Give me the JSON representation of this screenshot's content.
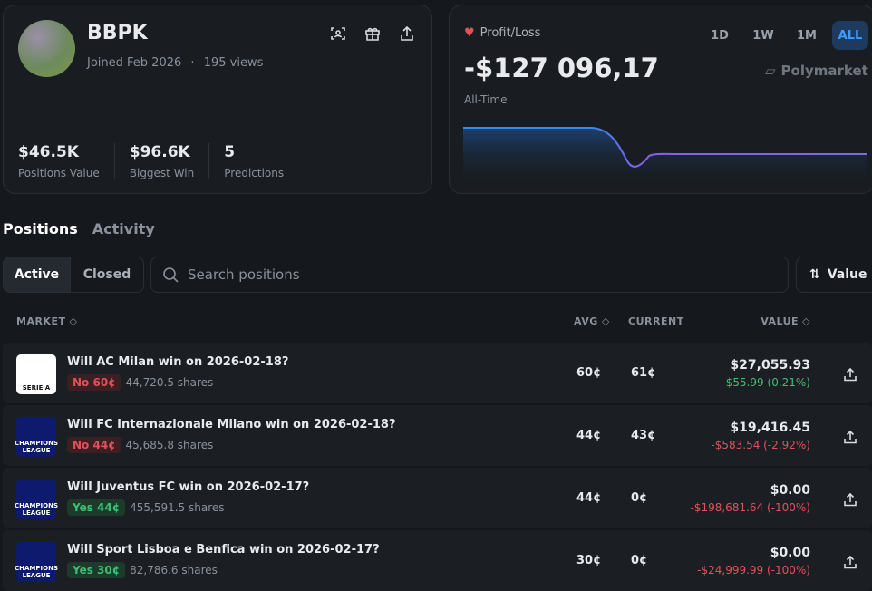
{
  "profile": {
    "name": "BBPK",
    "joined": "Joined Feb 2026",
    "separator": "·",
    "views": "195 views",
    "stats": [
      {
        "value": "$46.5K",
        "label": "Positions Value"
      },
      {
        "value": "$96.6K",
        "label": "Biggest Win"
      },
      {
        "value": "5",
        "label": "Predictions"
      }
    ]
  },
  "pnl": {
    "label": "Profit/Loss",
    "ranges": [
      "1D",
      "1W",
      "1M",
      "ALL"
    ],
    "active_range": 3,
    "amount": "-$127 096,17",
    "period": "All-Time",
    "brand": "Polymarket"
  },
  "tabs": [
    "Positions",
    "Activity"
  ],
  "filters": [
    "Active",
    "Closed"
  ],
  "search_placeholder": "Search positions",
  "sort": "Value",
  "table": {
    "headers": [
      "MARKET",
      "AVG",
      "CURRENT",
      "VALUE"
    ],
    "rows": [
      {
        "logo": "SERIE A",
        "title": "Will AC Milan win on 2026-02-18?",
        "outcome": "No 60¢",
        "shares": "44,720.5 shares",
        "avg": "60¢",
        "current": "61¢",
        "value": "$27,055.93",
        "change": "$55.99 (0.21%)"
      },
      {
        "logo": "CHAMPIONS LEAGUE",
        "title": "Will FC Internazionale Milano win on 2026-02-18?",
        "outcome": "No 44¢",
        "shares": "45,685.8 shares",
        "avg": "44¢",
        "current": "43¢",
        "value": "$19,416.45",
        "change": "-$583.54 (-2.92%)"
      },
      {
        "logo": "CHAMPIONS LEAGUE",
        "title": "Will Juventus FC win on 2026-02-17?",
        "outcome": "Yes 44¢",
        "shares": "455,591.5 shares",
        "avg": "44¢",
        "current": "0¢",
        "value": "$0.00",
        "change": "-$198,681.64 (-100%)"
      },
      {
        "logo": "CHAMPIONS LEAGUE",
        "title": "Will Sport Lisboa e Benfica win on 2026-02-17?",
        "outcome": "Yes 30¢",
        "shares": "82,786.6 shares",
        "avg": "30¢",
        "current": "0¢",
        "value": "$0.00",
        "change": "-$24,999.99 (-100%)"
      }
    ]
  }
}
